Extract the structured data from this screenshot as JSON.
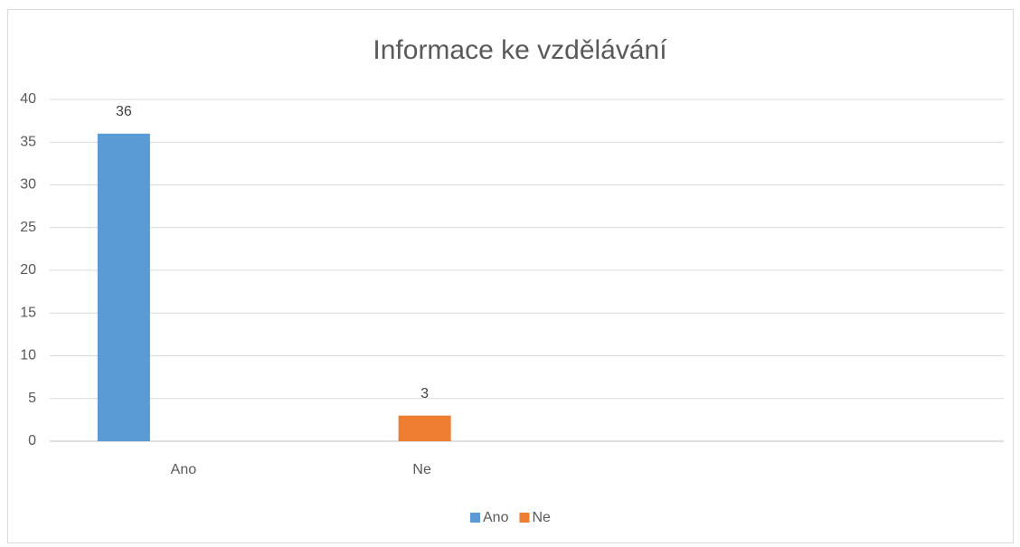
{
  "chart_data": {
    "type": "bar",
    "title": "Informace ke vzdělávání",
    "categories": [
      "Ano",
      "Ne",
      null,
      null
    ],
    "series": [
      {
        "name": "Ano",
        "color": "#5b9bd5",
        "values": [
          36,
          null,
          null,
          null
        ]
      },
      {
        "name": "Ne",
        "color": "#ed7d31",
        "values": [
          null,
          3,
          null,
          null
        ]
      }
    ],
    "ylim": [
      0,
      40
    ],
    "yticks": [
      0,
      5,
      10,
      15,
      20,
      25,
      30,
      35,
      40
    ],
    "grid": true,
    "legend": "bottom"
  }
}
